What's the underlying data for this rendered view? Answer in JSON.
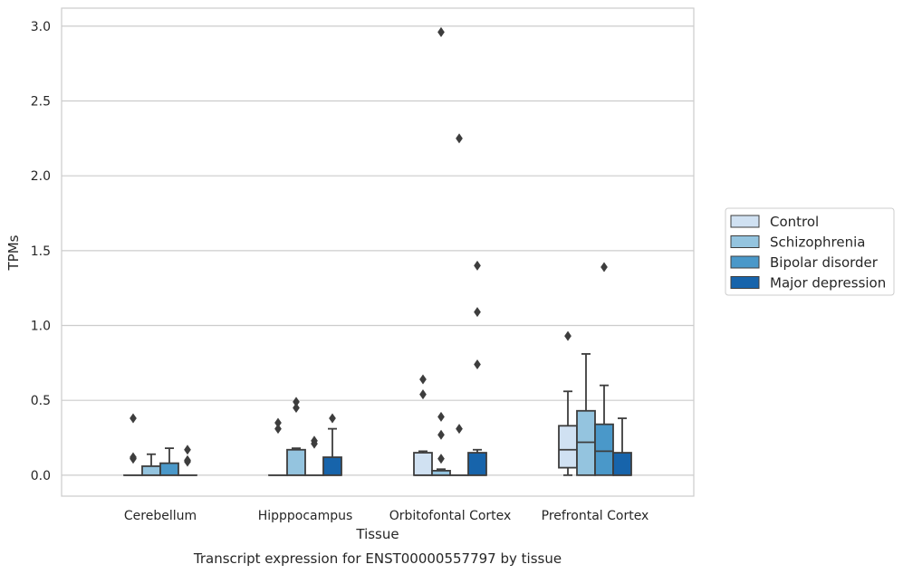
{
  "chart_data": {
    "type": "boxplot",
    "caption": "Transcript expression for ENST00000557797 by tissue",
    "xlabel": "Tissue",
    "ylabel": "TPMs",
    "ylim": [
      -0.14,
      3.12
    ],
    "yticks": [
      0.0,
      0.5,
      1.0,
      1.5,
      2.0,
      2.5,
      3.0
    ],
    "ytick_labels": [
      "0.0",
      "0.5",
      "1.0",
      "1.5",
      "2.0",
      "2.5",
      "3.0"
    ],
    "grid": true,
    "legend_position": "right",
    "categories": [
      "Cerebellum",
      "Hipppocampus",
      "Orbitofontal Cortex",
      "Prefrontal Cortex"
    ],
    "series": [
      {
        "name": "Control",
        "color": "#d0e1f2",
        "boxes": [
          {
            "q1": 0.0,
            "median": 0.0,
            "q3": 0.0,
            "whislo": 0.0,
            "whishi": 0.0,
            "fliers": [
              0.38,
              0.11,
              0.12
            ]
          },
          {
            "q1": 0.0,
            "median": 0.0,
            "q3": 0.0,
            "whislo": 0.0,
            "whishi": 0.0,
            "fliers": [
              0.35,
              0.31
            ]
          },
          {
            "q1": 0.0,
            "median": 0.0,
            "q3": 0.15,
            "whislo": 0.0,
            "whishi": 0.16,
            "fliers": [
              0.64,
              0.54
            ]
          },
          {
            "q1": 0.05,
            "median": 0.17,
            "q3": 0.33,
            "whislo": 0.0,
            "whishi": 0.56,
            "fliers": [
              0.93
            ]
          }
        ]
      },
      {
        "name": "Schizophrenia",
        "color": "#94c4df",
        "boxes": [
          {
            "q1": 0.0,
            "median": 0.0,
            "q3": 0.06,
            "whislo": 0.0,
            "whishi": 0.14,
            "fliers": []
          },
          {
            "q1": 0.0,
            "median": 0.0,
            "q3": 0.17,
            "whislo": 0.0,
            "whishi": 0.18,
            "fliers": [
              0.49,
              0.45
            ]
          },
          {
            "q1": 0.0,
            "median": 0.0,
            "q3": 0.03,
            "whislo": 0.0,
            "whishi": 0.04,
            "fliers": [
              2.96,
              0.39,
              0.27,
              0.11
            ]
          },
          {
            "q1": 0.0,
            "median": 0.22,
            "q3": 0.43,
            "whislo": 0.0,
            "whishi": 0.81,
            "fliers": []
          }
        ]
      },
      {
        "name": "Bipolar disorder",
        "color": "#4a98c9",
        "boxes": [
          {
            "q1": 0.0,
            "median": 0.0,
            "q3": 0.08,
            "whislo": 0.0,
            "whishi": 0.18,
            "fliers": []
          },
          {
            "q1": 0.0,
            "median": 0.0,
            "q3": 0.0,
            "whislo": 0.0,
            "whishi": 0.0,
            "fliers": [
              0.23,
              0.21
            ]
          },
          {
            "q1": 0.0,
            "median": 0.0,
            "q3": 0.0,
            "whislo": 0.0,
            "whishi": 0.0,
            "fliers": [
              2.25,
              0.31
            ]
          },
          {
            "q1": 0.0,
            "median": 0.16,
            "q3": 0.34,
            "whislo": 0.0,
            "whishi": 0.6,
            "fliers": [
              1.39
            ]
          }
        ]
      },
      {
        "name": "Major depression",
        "color": "#1764ab",
        "boxes": [
          {
            "q1": 0.0,
            "median": 0.0,
            "q3": 0.0,
            "whislo": 0.0,
            "whishi": 0.0,
            "fliers": [
              0.17,
              0.1,
              0.09
            ]
          },
          {
            "q1": 0.0,
            "median": 0.0,
            "q3": 0.12,
            "whislo": 0.0,
            "whishi": 0.31,
            "fliers": [
              0.38
            ]
          },
          {
            "q1": 0.0,
            "median": 0.0,
            "q3": 0.15,
            "whislo": 0.0,
            "whishi": 0.17,
            "fliers": [
              1.4,
              1.09,
              0.74
            ]
          },
          {
            "q1": 0.0,
            "median": 0.0,
            "q3": 0.15,
            "whislo": 0.0,
            "whishi": 0.38,
            "fliers": []
          }
        ]
      }
    ]
  }
}
